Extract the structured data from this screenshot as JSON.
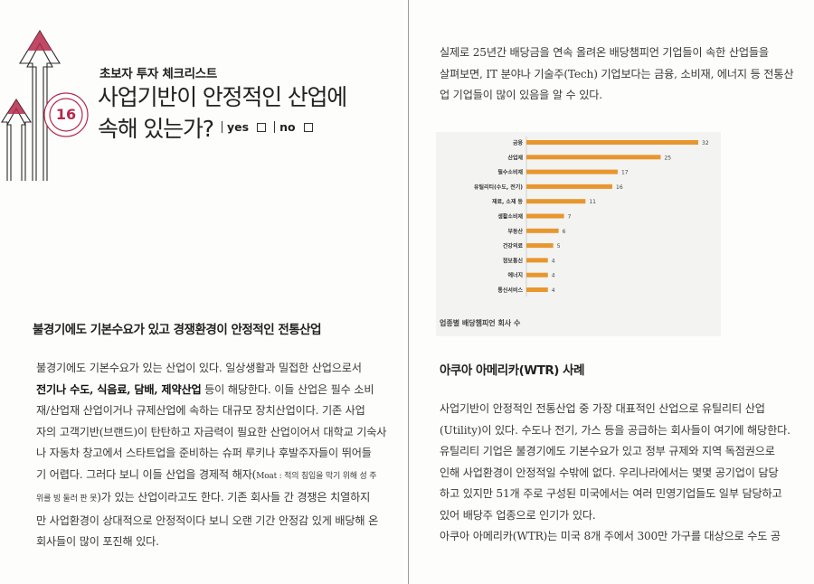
{
  "checklist": {
    "series_label": "초보자 투자 체크리스트",
    "number": "16",
    "headline_line1": "사업기반이 안정적인 산업에",
    "headline_line2": "속해 있는가?",
    "yes_label": "yes",
    "no_label": "no"
  },
  "colors": {
    "accent": "#b5294a",
    "bar": "#e8962e"
  },
  "left_section": {
    "title": "불경기에도 기본수요가 있고 경쟁환경이 안정적인 전통산업",
    "lines": [
      [
        "불경기에도 기본수요가 있는 산업이 있다. 일상생활과 밀접한 산업으로서"
      ],
      [
        "전기나 수도, 식음료, 담배, 제약산업",
        " 등이 해당한다. 이들 산업은 필수 소비"
      ],
      [
        "재/산업재 산업이거나 규제산업에 속하는 대규모 장치산업이다. 기존 사업"
      ],
      [
        "자의 고객기반(브랜드)이 탄탄하고 자금력이 필요한 산업이어서 대학교 기숙사"
      ],
      [
        "나 자동차 창고에서 스타트업을 준비하는 슈퍼 루키나 후발주자들이 뛰어들"
      ],
      [
        "기 어렵다. 그러다 보니 이들 산업을 경제적 해자(",
        "Moat : 적의 침입을 막기 위해 성 주"
      ],
      [
        "위를 빙 둘러 판 못",
        ")가 있는 산업이라고도 한다. 기존 회사들 간 경쟁은 치열하지"
      ],
      [
        "만 사업환경이 상대적으로 안정적이다 보니 오랜 기간 안정감 있게 배당해 온"
      ],
      [
        "회사들이 많이 포진해 있다."
      ]
    ]
  },
  "right_intro": {
    "lines": [
      "실제로 25년간 배당금을 연속 올려온 배당챔피언 기업들이 속한 산업들을",
      "살펴보면, IT 분야나 기술주(Tech) 기업보다는 금융, 소비재, 에너지 등 전통산",
      "업 기업들이 많이 있음을 알 수 있다."
    ]
  },
  "chart_data": {
    "type": "bar",
    "orientation": "horizontal",
    "categories": [
      "금융",
      "산업재",
      "필수소비재",
      "유틸리티(수도, 전기)",
      "재료, 소재 등",
      "생활소비재",
      "부동산",
      "건강의료",
      "정보통신",
      "에너지",
      "통신서비스"
    ],
    "values": [
      32,
      25,
      17,
      16,
      11,
      7,
      6,
      5,
      4,
      4,
      4
    ],
    "title": "업종별 배당챔피언 회사 수",
    "xlim": [
      0,
      32
    ],
    "grid": false,
    "legend": "none"
  },
  "right_section": {
    "title": "아쿠아 아메리카(WTR) 사례",
    "lines": [
      "사업기반이 안정적인 전통산업 중 가장 대표적인 산업으로 유틸리티 산업",
      "(Utility)이 있다. 수도나 전기, 가스 등을 공급하는 회사들이 여기에 해당한다.",
      "유틸리티 기업은 불경기에도 기본수요가 있고 정부 규제와 지역 독점권으로",
      "인해 사업환경이 안정적일 수밖에 없다. 우리나라에서는 몇몇 공기업이 담당",
      "하고 있지만 51개 주로 구성된 미국에서는 여러 민영기업들도 일부 담당하고",
      "있어 배당주 업종으로 인기가 있다.",
      "아쿠아 아메리카(WTR)는 미국 8개 주에서 300만 가구를 대상으로 수도 공"
    ]
  }
}
